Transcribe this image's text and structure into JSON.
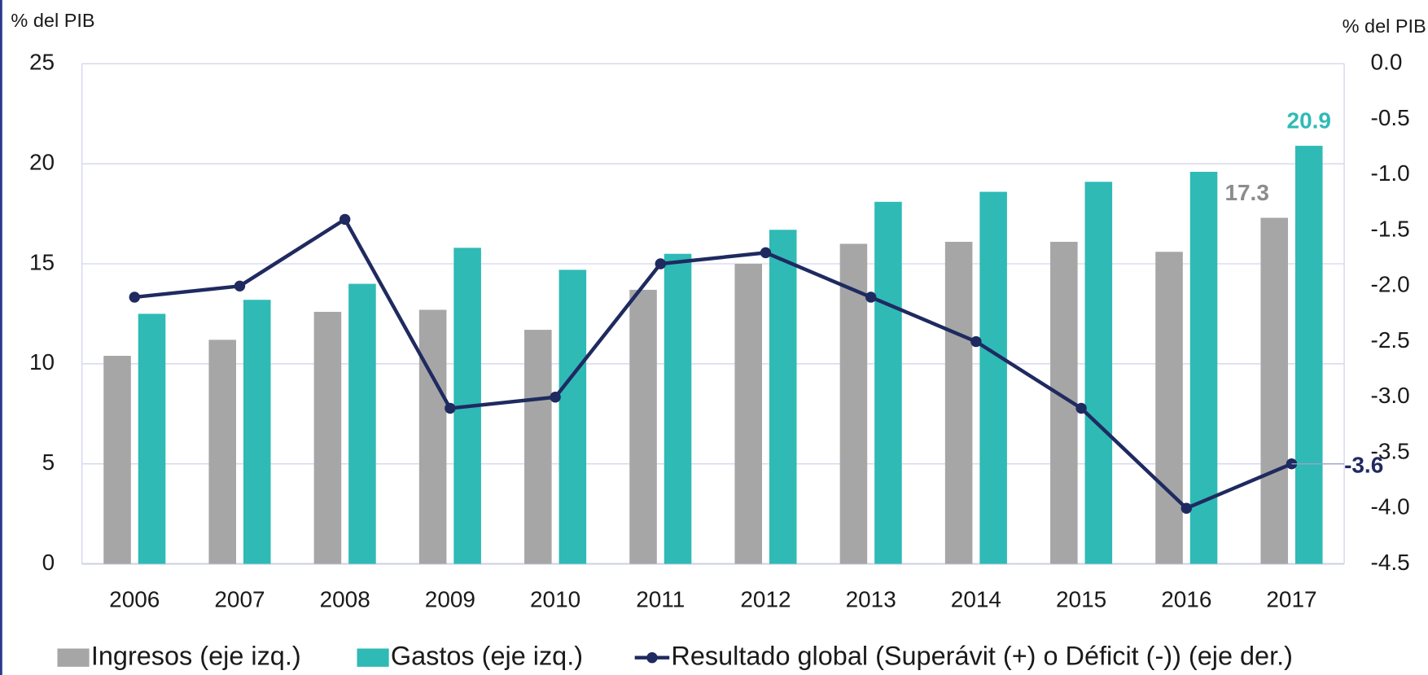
{
  "chart_data": {
    "type": "bar",
    "y_label": "% del PIB",
    "y2_label": "% del PIB",
    "categories": [
      "2006",
      "2007",
      "2008",
      "2009",
      "2010",
      "2011",
      "2012",
      "2013",
      "2014",
      "2015",
      "2016",
      "2017"
    ],
    "series": [
      {
        "name": "Ingresos (eje izq.)",
        "color": "#a6a6a6",
        "values": [
          10.4,
          11.2,
          12.6,
          12.7,
          11.7,
          13.7,
          15.0,
          16.0,
          16.1,
          16.1,
          15.6,
          17.3
        ]
      },
      {
        "name": "Gastos (eje izq.)",
        "color": "#2fbab6",
        "values": [
          12.5,
          13.2,
          14.0,
          15.8,
          14.7,
          15.5,
          16.7,
          18.1,
          18.6,
          19.1,
          19.6,
          20.9
        ]
      },
      {
        "name": "Resultado global (Superávit (+)  o  Déficit (-)) (eje der.)",
        "color": "#1f2a60",
        "type": "line",
        "axis": "y2",
        "values": [
          -2.1,
          -2.0,
          -1.4,
          -3.1,
          -3.0,
          -1.8,
          -1.7,
          -2.1,
          -2.5,
          -3.1,
          -4.0,
          -3.6
        ]
      }
    ],
    "ylim": [
      0,
      25
    ],
    "yticks": [
      0,
      5,
      10,
      15,
      20,
      25
    ],
    "y2lim": [
      -4.5,
      0
    ],
    "y2ticks": [
      {
        "value": 0,
        "label": "0.0"
      },
      {
        "value": -0.5,
        "label": "-0.5"
      },
      {
        "value": -1,
        "label": "-1.0"
      },
      {
        "value": -1.5,
        "label": "-1.5"
      },
      {
        "value": -2,
        "label": "-2.0"
      },
      {
        "value": -2.5,
        "label": "-2.5"
      },
      {
        "value": -3,
        "label": "-3.0"
      },
      {
        "value": -3.5,
        "label": "-3.5"
      },
      {
        "value": -4,
        "label": "-4.0"
      },
      {
        "value": -4.5,
        "label": "-4.5"
      }
    ],
    "grid": true,
    "legend": "bottom"
  }
}
